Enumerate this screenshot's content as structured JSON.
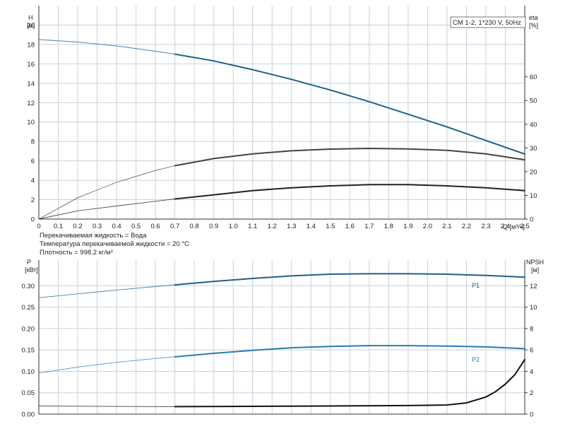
{
  "chart_data": [
    {
      "type": "line",
      "title": "CM 1-2, 1*230 V, 50Hz",
      "xlabel": "Q [м³/ч]",
      "ylabel_left": "H",
      "ylabel_left_unit": "[м]",
      "ylabel_right": "eta",
      "ylabel_right_unit": "[%]",
      "xlim": [
        0,
        2.5
      ],
      "ylim_left": [
        0,
        22
      ],
      "ylim_right": [
        0,
        90
      ],
      "grid": true,
      "x_ticks": [
        "0",
        "0.1",
        "0.2",
        "0.3",
        "0.4",
        "0.5",
        "0.6",
        "0.7",
        "0.8",
        "0.9",
        "1.0",
        "1.1",
        "1.2",
        "1.3",
        "1.4",
        "1.5",
        "1.6",
        "1.7",
        "1.8",
        "1.9",
        "2.0",
        "2.1",
        "2.2",
        "2.3",
        "2.4",
        "2.5"
      ],
      "y_ticks_left": [
        "0",
        "2",
        "4",
        "6",
        "8",
        "10",
        "12",
        "14",
        "16",
        "18",
        "20"
      ],
      "y_ticks_right": [
        "0",
        "10",
        "20",
        "30",
        "40",
        "50",
        "60"
      ],
      "series": [
        {
          "key": "H",
          "axis": "left",
          "color": "#1f5f8b",
          "x": [
            0,
            0.2,
            0.4,
            0.6,
            0.7,
            0.9,
            1.1,
            1.3,
            1.5,
            1.7,
            1.9,
            2.1,
            2.3,
            2.5
          ],
          "y": [
            18.5,
            18.25,
            17.85,
            17.3,
            17.0,
            16.3,
            15.4,
            14.4,
            13.3,
            12.1,
            10.8,
            9.5,
            8.1,
            6.7
          ],
          "solid_from": 0.7
        },
        {
          "key": "eta_upper",
          "axis": "right",
          "color": "#444444",
          "x": [
            0,
            0.2,
            0.4,
            0.6,
            0.7,
            0.9,
            1.1,
            1.3,
            1.5,
            1.7,
            1.9,
            2.1,
            2.3,
            2.5
          ],
          "y": [
            0,
            9,
            15.5,
            20.5,
            22.5,
            25.5,
            27.5,
            28.8,
            29.5,
            29.8,
            29.6,
            29.0,
            27.5,
            25.0
          ],
          "solid_from": 0.7
        },
        {
          "key": "eta_lower",
          "axis": "right",
          "color": "#222222",
          "x": [
            0,
            0.2,
            0.4,
            0.6,
            0.7,
            0.9,
            1.1,
            1.3,
            1.5,
            1.7,
            1.9,
            2.1,
            2.3,
            2.5
          ],
          "y": [
            0,
            3.5,
            5.5,
            7.5,
            8.5,
            10.2,
            12,
            13.2,
            14,
            14.5,
            14.5,
            14.0,
            13.2,
            12.0
          ],
          "solid_from": 0.7
        }
      ]
    },
    {
      "type": "line",
      "xlabel": "",
      "ylabel_left": "P",
      "ylabel_left_unit": "[кВт]",
      "ylabel_right": "NPSH",
      "ylabel_right_unit": "[м]",
      "xlim": [
        0,
        2.5
      ],
      "ylim_left": [
        0,
        0.36
      ],
      "ylim_right": [
        0,
        14.4
      ],
      "grid": true,
      "y_ticks_left": [
        "0.00",
        "0.05",
        "0.10",
        "0.15",
        "0.20",
        "0.25",
        "0.30"
      ],
      "y_ticks_right": [
        "0",
        "2",
        "4",
        "6",
        "8",
        "10",
        "12"
      ],
      "series": [
        {
          "key": "P1",
          "name": "P1",
          "axis": "left",
          "color": "#1f5f8b",
          "x": [
            0,
            0.2,
            0.4,
            0.6,
            0.7,
            0.9,
            1.1,
            1.3,
            1.5,
            1.7,
            1.9,
            2.1,
            2.3,
            2.5
          ],
          "y": [
            0.272,
            0.281,
            0.29,
            0.298,
            0.302,
            0.31,
            0.317,
            0.323,
            0.327,
            0.328,
            0.328,
            0.327,
            0.324,
            0.32
          ],
          "solid_from": 0.7
        },
        {
          "key": "P2",
          "name": "P2",
          "axis": "left",
          "color": "#2a7ab0",
          "x": [
            0,
            0.2,
            0.4,
            0.6,
            0.7,
            0.9,
            1.1,
            1.3,
            1.5,
            1.7,
            1.9,
            2.1,
            2.3,
            2.5
          ],
          "y": [
            0.096,
            0.11,
            0.121,
            0.13,
            0.134,
            0.142,
            0.149,
            0.155,
            0.158,
            0.16,
            0.16,
            0.159,
            0.157,
            0.153
          ],
          "solid_from": 0.7
        },
        {
          "key": "NPSH",
          "axis": "right",
          "color": "#111111",
          "x": [
            0,
            0.7,
            1.0,
            1.5,
            1.9,
            2.1,
            2.2,
            2.3,
            2.35,
            2.4,
            2.45,
            2.5
          ],
          "y": [
            0.75,
            0.7,
            0.72,
            0.76,
            0.8,
            0.85,
            1.05,
            1.6,
            2.1,
            2.8,
            3.7,
            5.1
          ],
          "solid_from": 0.7
        }
      ]
    }
  ],
  "notes": [
    "Перекачиваемая жидкость = Вода",
    "Температура перекачиваемой жидкости = 20 °C",
    "Плотность = 998.2 кг/м³"
  ]
}
